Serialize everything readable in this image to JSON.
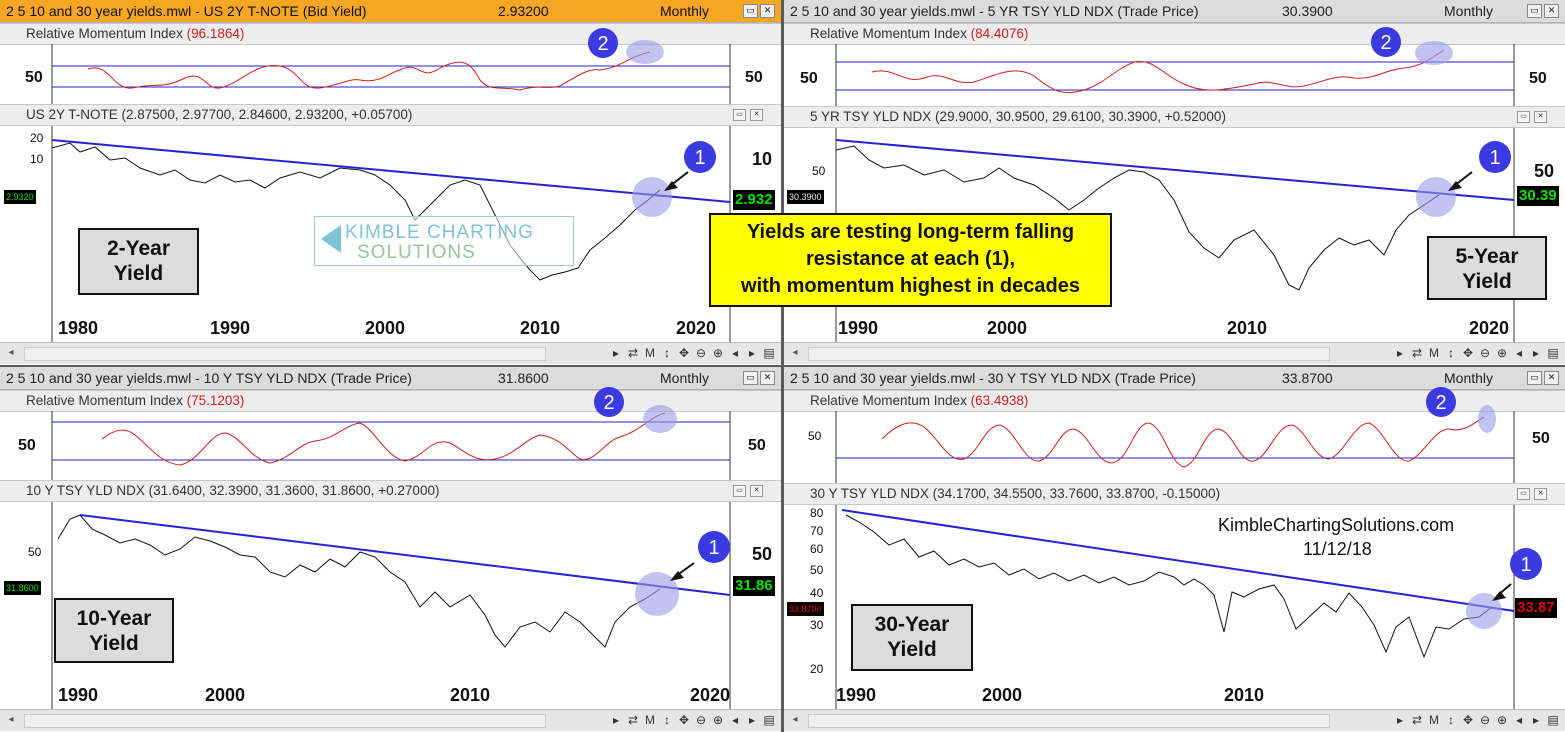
{
  "panes": [
    {
      "id": "2y",
      "title": "2 5 10 and 30 year yields.mwl - US 2Y T-NOTE (Bid Yield)",
      "value": "2.93200",
      "period": "Monthly",
      "momentum_label": "Relative Momentum Index",
      "momentum_value": "(96.1864)",
      "momentum_axis": "50",
      "price_label": "US 2Y T-NOTE (2.87500, 2.97700, 2.84600, 2.93200, +0.05700)",
      "price_axis": [
        "20",
        "10",
        "10"
      ],
      "last_price": "2.932",
      "last_small": "2.9320",
      "years": [
        "1980",
        "1990",
        "2000",
        "2010",
        "2020"
      ],
      "label_box": [
        "2-Year",
        "Yield"
      ],
      "marker_1": "1",
      "marker_2": "2"
    },
    {
      "id": "5y",
      "title": "2 5 10 and 30 year yields.mwl - 5 YR TSY YLD NDX (Trade Price)",
      "value": "30.3900",
      "period": "Monthly",
      "momentum_label": "Relative Momentum Index",
      "momentum_value": "(84.4076)",
      "momentum_axis": "50",
      "price_label": "5 YR TSY YLD NDX (29.9000, 30.9500, 29.6100, 30.3900, +0.52000)",
      "price_axis": [
        "50",
        "50"
      ],
      "last_price": "30.39",
      "last_small": "30.3900",
      "years": [
        "1990",
        "2000",
        "2010",
        "2020"
      ],
      "label_box": [
        "5-Year",
        "Yield"
      ],
      "marker_1": "1",
      "marker_2": "2"
    },
    {
      "id": "10y",
      "title": "2 5 10 and 30 year yields.mwl - 10 Y TSY YLD NDX (Trade Price)",
      "value": "31.8600",
      "period": "Monthly",
      "momentum_label": "Relative Momentum Index",
      "momentum_value": "(75.1203)",
      "momentum_axis": "50",
      "price_label": "10 Y TSY YLD NDX (31.6400, 32.3900, 31.3600, 31.8600, +0.27000)",
      "price_axis": [
        "50",
        "50"
      ],
      "last_price": "31.86",
      "last_small": "31.8600",
      "years": [
        "1990",
        "2000",
        "2010",
        "2020"
      ],
      "label_box": [
        "10-Year",
        "Yield"
      ],
      "marker_1": "1",
      "marker_2": "2"
    },
    {
      "id": "30y",
      "title": "2 5 10 and 30 year yields.mwl - 30 Y TSY YLD NDX (Trade Price)",
      "value": "33.8700",
      "period": "Monthly",
      "momentum_label": "Relative Momentum Index",
      "momentum_value": "(63.4938)",
      "momentum_axis": "50",
      "price_label": "30 Y TSY YLD NDX (34.1700, 34.5500, 33.7600, 33.8700, -0.15000)",
      "price_axis": [
        "80",
        "70",
        "60",
        "50",
        "40",
        "30",
        "20"
      ],
      "last_price": "33.87",
      "last_small": "33.8700",
      "years": [
        "1990",
        "2000",
        "2010"
      ],
      "label_box": [
        "30-Year",
        "Yield"
      ],
      "marker_1": "1",
      "marker_2": "2"
    }
  ],
  "annotation": {
    "lines": [
      "Yields are testing long-term falling",
      "resistance at each (1),",
      "with momentum highest in decades"
    ]
  },
  "watermark": {
    "line1": "KIMBLE CHARTING",
    "line2": "SOLUTIONS"
  },
  "site": "KimbleChartingSolutions.com",
  "date": "11/12/18",
  "toolbar": {
    "cycle": "⇄",
    "mode": "M",
    "vsize": "↕",
    "move": "✥",
    "zoom_out": "⊖",
    "zoom_in": "⊕",
    "list": "▤"
  },
  "window_buttons": {
    "minimize": "▭",
    "close": "✕"
  },
  "colors": {
    "active_title": "#f5a623",
    "momentum_line": "#d21e1e",
    "trend_line": "#2424d6",
    "band_line": "#2424c8",
    "highlight": "#9b9bea",
    "marker": "#3a3ae0",
    "positive": "#00c800",
    "negative": "#e00000"
  }
}
